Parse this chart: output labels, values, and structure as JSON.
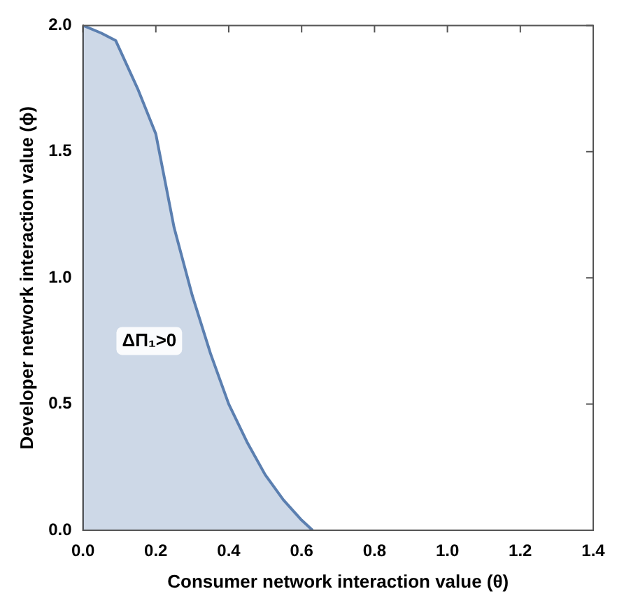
{
  "chart_data": {
    "type": "area",
    "xlabel": "Consumer network interaction value (θ)",
    "ylabel": "Developer network interaction value (ϕ)",
    "x": [
      0,
      0.05,
      0.09,
      0.15,
      0.2,
      0.25,
      0.3,
      0.35,
      0.4,
      0.45,
      0.5,
      0.55,
      0.6,
      0.63
    ],
    "series": [
      {
        "color": "#5b7fb0",
        "values": [
          2.0,
          1.97,
          1.94,
          1.75,
          1.57,
          1.2,
          0.93,
          0.7,
          0.5,
          0.35,
          0.22,
          0.12,
          0.04,
          0
        ]
      }
    ],
    "xlim": [
      0,
      1.4
    ],
    "ylim": [
      0,
      2.0
    ],
    "xticks": [
      {
        "value": 0,
        "label": "0.0"
      },
      0.2,
      0.4,
      0.6,
      0.8,
      {
        "value": 1,
        "label": "1.0"
      },
      1.2,
      1.4
    ],
    "yticks": [
      {
        "value": 0,
        "label": "0.0"
      },
      0.5,
      {
        "value": 1,
        "label": "1.0"
      },
      1.5,
      {
        "value": 2,
        "label": "2.0"
      }
    ],
    "annotations": [
      "ΔΠ₁>0"
    ],
    "grid": false,
    "legend": false
  }
}
